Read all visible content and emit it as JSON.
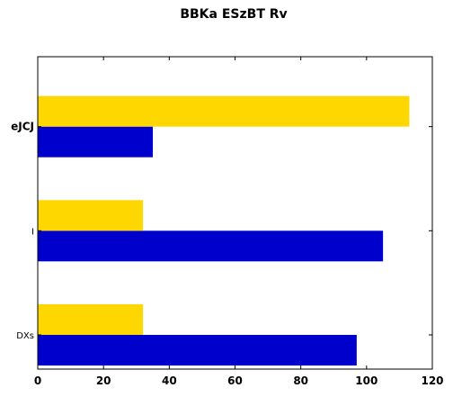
{
  "chart_data": {
    "type": "bar",
    "orientation": "horizontal",
    "title": "BBKa ESzBT Rv",
    "categories": [
      "DXs",
      "I",
      "eJCJ"
    ],
    "category_label_weights": [
      "normal",
      "normal",
      "bold"
    ],
    "series": [
      {
        "values": [
          32,
          32,
          113
        ],
        "color": "#ffd700"
      },
      {
        "values": [
          97,
          105,
          35
        ],
        "color": "#0000cd"
      }
    ],
    "xlim": [
      0,
      120
    ],
    "xticks": [
      0,
      20,
      40,
      60,
      80,
      100,
      120
    ],
    "grid": false,
    "legend": "none"
  }
}
